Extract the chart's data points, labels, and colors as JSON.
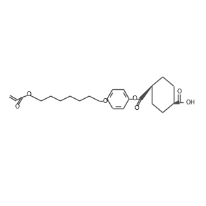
{
  "line_color": "#4a4a4a",
  "line_width": 1.0,
  "figsize": [
    3.0,
    3.0
  ],
  "dpi": 100,
  "xlim": [
    0,
    300
  ],
  "ylim": [
    0,
    300
  ]
}
